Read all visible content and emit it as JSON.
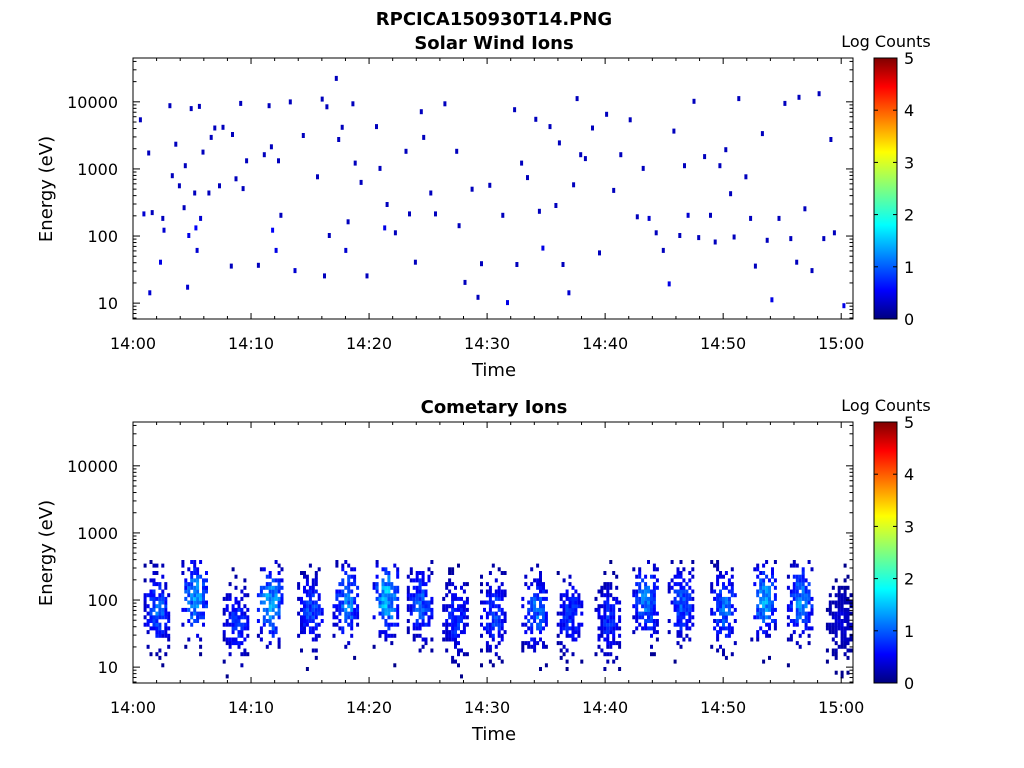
{
  "figure": {
    "title": "RPCICA150930T14.PNG"
  },
  "panels": [
    {
      "title": "Solar Wind Ions",
      "ylabel": "Energy (eV)",
      "xlabel": "Time",
      "colorbar_label": "Log Counts"
    },
    {
      "title": "Cometary Ions",
      "ylabel": "Energy (eV)",
      "xlabel": "Time",
      "colorbar_label": "Log Counts"
    }
  ],
  "chart_data": [
    {
      "type": "heatmap",
      "title": "Solar Wind Ions",
      "xlabel": "Time",
      "ylabel": "Energy (eV)",
      "x_ticks": [
        "14:00",
        "14:10",
        "14:20",
        "14:30",
        "14:40",
        "14:50",
        "15:00"
      ],
      "y_ticks": [
        10,
        100,
        1000,
        10000
      ],
      "y_tick_labels": [
        "10",
        "100",
        "1000",
        "10000"
      ],
      "y_scale": "log",
      "ylim": [
        5.8,
        45000
      ],
      "xlim_minutes": [
        0,
        61
      ],
      "colorbar": {
        "label": "Log Counts",
        "range": [
          0,
          5
        ],
        "ticks": [
          "0",
          "1",
          "2",
          "3",
          "4",
          "5"
        ]
      },
      "points_min_energy_value": [
        [
          0.5,
          5300,
          0.3
        ],
        [
          0.8,
          210,
          0.4
        ],
        [
          1.2,
          1700,
          0.3
        ],
        [
          1.3,
          14,
          0.4
        ],
        [
          1.5,
          220,
          0.3
        ],
        [
          2.2,
          40,
          0.5
        ],
        [
          2.4,
          180,
          0.3
        ],
        [
          2.5,
          120,
          0.4
        ],
        [
          3.0,
          8600,
          0.3
        ],
        [
          3.2,
          780,
          0.3
        ],
        [
          3.5,
          2300,
          0.3
        ],
        [
          3.8,
          550,
          0.3
        ],
        [
          4.2,
          260,
          0.3
        ],
        [
          4.3,
          1100,
          0.3
        ],
        [
          4.5,
          17,
          0.4
        ],
        [
          4.6,
          100,
          0.5
        ],
        [
          4.8,
          7800,
          0.3
        ],
        [
          5.1,
          430,
          0.3
        ],
        [
          5.2,
          130,
          0.6
        ],
        [
          5.3,
          60,
          0.4
        ],
        [
          5.5,
          8400,
          0.3
        ],
        [
          5.6,
          180,
          0.4
        ],
        [
          5.8,
          1750,
          0.3
        ],
        [
          6.3,
          430,
          0.3
        ],
        [
          6.5,
          2900,
          0.3
        ],
        [
          6.8,
          4000,
          0.3
        ],
        [
          7.2,
          550,
          0.3
        ],
        [
          7.5,
          4100,
          0.3
        ],
        [
          8.2,
          35,
          0.3
        ],
        [
          8.3,
          3200,
          0.3
        ],
        [
          8.6,
          700,
          0.3
        ],
        [
          9.0,
          9300,
          0.3
        ],
        [
          9.2,
          500,
          0.3
        ],
        [
          9.5,
          1300,
          0.3
        ],
        [
          10.5,
          36,
          0.3
        ],
        [
          11.0,
          1600,
          0.3
        ],
        [
          11.4,
          8600,
          0.3
        ],
        [
          11.6,
          2100,
          0.3
        ],
        [
          11.7,
          120,
          0.6
        ],
        [
          12.0,
          60,
          0.5
        ],
        [
          12.2,
          1300,
          0.3
        ],
        [
          12.4,
          200,
          0.3
        ],
        [
          13.2,
          9800,
          0.3
        ],
        [
          13.6,
          30,
          0.4
        ],
        [
          14.3,
          3100,
          0.3
        ],
        [
          15.5,
          750,
          0.3
        ],
        [
          15.9,
          10800,
          0.3
        ],
        [
          16.1,
          25,
          0.3
        ],
        [
          16.3,
          8300,
          0.3
        ],
        [
          16.5,
          100,
          0.3
        ],
        [
          17.1,
          22000,
          0.3
        ],
        [
          17.3,
          2700,
          0.3
        ],
        [
          17.6,
          4100,
          0.3
        ],
        [
          17.9,
          60,
          0.4
        ],
        [
          18.1,
          160,
          0.3
        ],
        [
          18.5,
          9200,
          0.3
        ],
        [
          18.7,
          1200,
          0.3
        ],
        [
          19.2,
          620,
          0.3
        ],
        [
          19.7,
          25,
          0.3
        ],
        [
          20.5,
          4200,
          0.3
        ],
        [
          20.8,
          1000,
          0.3
        ],
        [
          21.2,
          130,
          0.5
        ],
        [
          21.4,
          290,
          0.3
        ],
        [
          22.1,
          110,
          0.3
        ],
        [
          23.0,
          1800,
          0.3
        ],
        [
          23.3,
          210,
          0.3
        ],
        [
          23.8,
          40,
          0.3
        ],
        [
          24.3,
          7000,
          0.3
        ],
        [
          24.5,
          2900,
          0.3
        ],
        [
          25.1,
          430,
          0.3
        ],
        [
          25.5,
          210,
          0.3
        ],
        [
          26.3,
          9200,
          0.3
        ],
        [
          27.3,
          1800,
          0.3
        ],
        [
          27.5,
          140,
          0.3
        ],
        [
          28.0,
          20,
          0.3
        ],
        [
          28.6,
          490,
          0.3
        ],
        [
          29.1,
          12,
          0.3
        ],
        [
          29.4,
          38,
          0.3
        ],
        [
          30.1,
          560,
          0.3
        ],
        [
          31.2,
          200,
          0.3
        ],
        [
          31.6,
          10,
          0.5
        ],
        [
          32.2,
          7500,
          0.3
        ],
        [
          32.4,
          37,
          0.3
        ],
        [
          32.8,
          1200,
          0.3
        ],
        [
          33.3,
          730,
          0.3
        ],
        [
          34.0,
          5400,
          0.3
        ],
        [
          34.3,
          230,
          0.3
        ],
        [
          34.6,
          65,
          0.5
        ],
        [
          35.2,
          4200,
          0.3
        ],
        [
          35.7,
          280,
          0.3
        ],
        [
          36.0,
          2400,
          0.3
        ],
        [
          36.3,
          37,
          0.3
        ],
        [
          36.8,
          14,
          0.4
        ],
        [
          37.2,
          570,
          0.3
        ],
        [
          37.5,
          11000,
          0.3
        ],
        [
          37.8,
          1600,
          0.3
        ],
        [
          38.2,
          1400,
          0.3
        ],
        [
          38.8,
          4000,
          0.3
        ],
        [
          39.4,
          55,
          0.3
        ],
        [
          40.0,
          6400,
          0.3
        ],
        [
          40.6,
          470,
          0.3
        ],
        [
          41.2,
          1600,
          0.3
        ],
        [
          42.0,
          5300,
          0.3
        ],
        [
          42.6,
          190,
          0.3
        ],
        [
          43.1,
          1000,
          0.3
        ],
        [
          43.6,
          180,
          0.4
        ],
        [
          44.2,
          110,
          0.3
        ],
        [
          44.8,
          60,
          0.3
        ],
        [
          45.3,
          19,
          0.5
        ],
        [
          45.7,
          3600,
          0.3
        ],
        [
          46.2,
          100,
          0.3
        ],
        [
          46.6,
          1100,
          0.3
        ],
        [
          46.9,
          200,
          0.4
        ],
        [
          47.4,
          10000,
          0.3
        ],
        [
          47.8,
          93,
          0.3
        ],
        [
          48.3,
          1500,
          0.3
        ],
        [
          48.8,
          200,
          0.3
        ],
        [
          49.2,
          80,
          0.3
        ],
        [
          49.6,
          1100,
          0.3
        ],
        [
          50.1,
          1900,
          0.3
        ],
        [
          50.5,
          420,
          0.3
        ],
        [
          50.8,
          95,
          0.3
        ],
        [
          51.2,
          11000,
          0.3
        ],
        [
          51.8,
          750,
          0.3
        ],
        [
          52.2,
          180,
          0.3
        ],
        [
          52.6,
          35,
          0.3
        ],
        [
          53.2,
          3300,
          0.3
        ],
        [
          53.6,
          85,
          0.3
        ],
        [
          54.0,
          11,
          0.5
        ],
        [
          54.6,
          180,
          0.3
        ],
        [
          55.1,
          9300,
          0.3
        ],
        [
          55.6,
          90,
          0.3
        ],
        [
          56.1,
          40,
          0.3
        ],
        [
          56.3,
          11500,
          0.3
        ],
        [
          56.8,
          250,
          0.3
        ],
        [
          57.4,
          30,
          0.3
        ],
        [
          58.0,
          13000,
          0.3
        ],
        [
          58.4,
          90,
          0.3
        ],
        [
          59.0,
          2700,
          0.3
        ],
        [
          59.3,
          110,
          0.3
        ],
        [
          60.1,
          9,
          0.5
        ]
      ]
    },
    {
      "type": "heatmap",
      "title": "Cometary Ions",
      "xlabel": "Time",
      "ylabel": "Energy (eV)",
      "x_ticks": [
        "14:00",
        "14:10",
        "14:20",
        "14:30",
        "14:40",
        "14:50",
        "15:00"
      ],
      "y_ticks": [
        10,
        100,
        1000,
        10000
      ],
      "y_tick_labels": [
        "10",
        "100",
        "1000",
        "10000"
      ],
      "y_scale": "log",
      "ylim": [
        5.8,
        45000
      ],
      "xlim_minutes": [
        0,
        61
      ],
      "colorbar": {
        "label": "Log Counts",
        "range": [
          0,
          5
        ],
        "ticks": [
          "0",
          "1",
          "2",
          "3",
          "4",
          "5"
        ]
      },
      "bursts_center_minute_peak_energy_peak_logcounts": [
        [
          2.0,
          70,
          1.2
        ],
        [
          5.2,
          110,
          1.6
        ],
        [
          8.7,
          45,
          1.0
        ],
        [
          11.6,
          85,
          1.7
        ],
        [
          15.0,
          70,
          1.1
        ],
        [
          18.0,
          95,
          1.4
        ],
        [
          21.4,
          105,
          1.7
        ],
        [
          24.3,
          85,
          1.2
        ],
        [
          27.3,
          55,
          1.0
        ],
        [
          30.5,
          60,
          1.1
        ],
        [
          34.0,
          65,
          1.3
        ],
        [
          37.0,
          60,
          1.0
        ],
        [
          40.2,
          50,
          0.9
        ],
        [
          43.4,
          95,
          1.4
        ],
        [
          46.4,
          85,
          1.2
        ],
        [
          50.0,
          75,
          1.3
        ],
        [
          53.4,
          100,
          1.5
        ],
        [
          56.5,
          95,
          1.4
        ],
        [
          59.8,
          45,
          0.5
        ]
      ]
    }
  ]
}
